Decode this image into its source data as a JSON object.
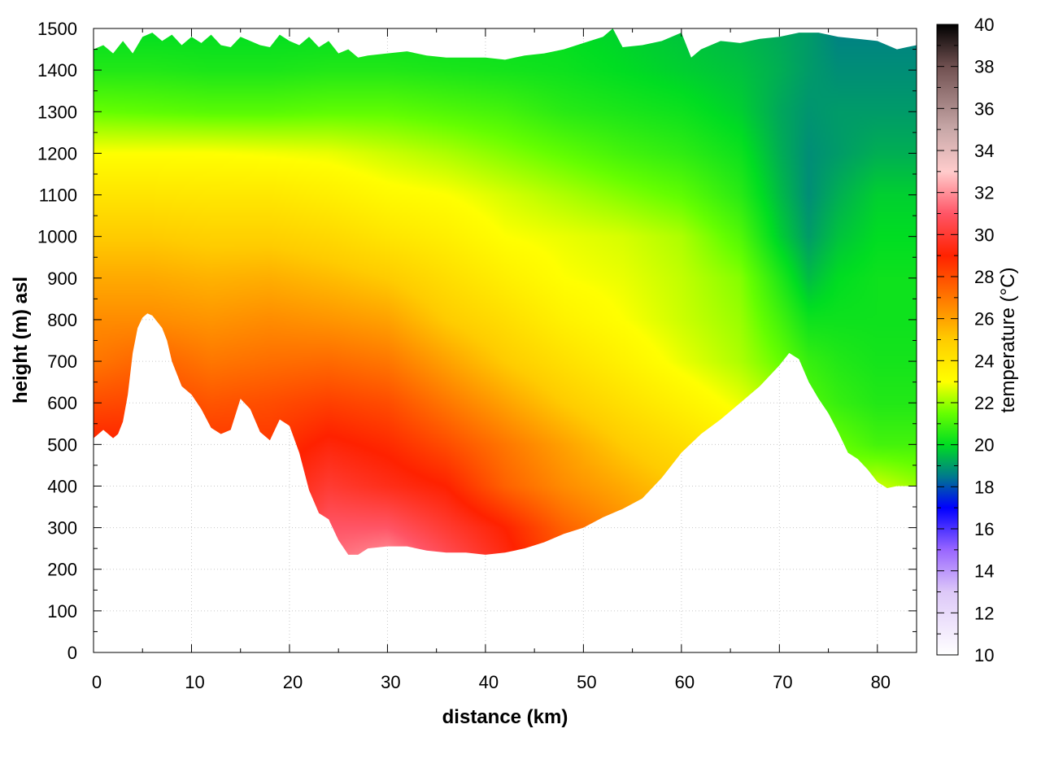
{
  "chart_data": {
    "type": "heatmap",
    "title": "",
    "xlabel": "distance (km)",
    "ylabel": "height (m) asl",
    "colorbar_label": "temperature (°C)",
    "xlim": [
      0,
      84
    ],
    "ylim": [
      0,
      1500
    ],
    "clim": [
      10,
      40
    ],
    "grid": true,
    "x_ticks": [
      0,
      10,
      20,
      30,
      40,
      50,
      60,
      70,
      80
    ],
    "y_ticks": [
      0,
      100,
      200,
      300,
      400,
      500,
      600,
      700,
      800,
      900,
      1000,
      1100,
      1200,
      1300,
      1400,
      1500
    ],
    "colorbar_ticks": [
      10,
      12,
      14,
      16,
      18,
      20,
      22,
      24,
      26,
      28,
      30,
      32,
      34,
      36,
      38,
      40
    ],
    "colormap": [
      {
        "t": 10,
        "color": "#ffffff"
      },
      {
        "t": 13,
        "color": "#ddc8f8"
      },
      {
        "t": 15,
        "color": "#9966ff"
      },
      {
        "t": 17,
        "color": "#0000ff"
      },
      {
        "t": 18.5,
        "color": "#007a8c"
      },
      {
        "t": 20,
        "color": "#00dd22"
      },
      {
        "t": 21.5,
        "color": "#66ff00"
      },
      {
        "t": 23,
        "color": "#ffff00"
      },
      {
        "t": 25,
        "color": "#ffcc00"
      },
      {
        "t": 27,
        "color": "#ff7700"
      },
      {
        "t": 29,
        "color": "#ff2200"
      },
      {
        "t": 31,
        "color": "#ff5566"
      },
      {
        "t": 33,
        "color": "#ffcccc"
      },
      {
        "t": 35,
        "color": "#c8a8a8"
      },
      {
        "t": 38,
        "color": "#705050"
      },
      {
        "t": 40,
        "color": "#000000"
      }
    ],
    "terrain_profile": {
      "distance_km": [
        0,
        1,
        2,
        2.5,
        3,
        3.5,
        4,
        4.5,
        5,
        5.5,
        6,
        6.5,
        7,
        7.5,
        8,
        9,
        10,
        11,
        12,
        13,
        14,
        15,
        16,
        17,
        18,
        19,
        20,
        21,
        22,
        23,
        24,
        25,
        26,
        27,
        28,
        30,
        32,
        34,
        36,
        38,
        40,
        42,
        44,
        46,
        48,
        50,
        52,
        54,
        56,
        58,
        60,
        62,
        64,
        66,
        68,
        70,
        71,
        72,
        73,
        74,
        75,
        76,
        77,
        78,
        79,
        80,
        81,
        82,
        83,
        84
      ],
      "height_m": [
        515,
        535,
        515,
        525,
        555,
        620,
        720,
        780,
        805,
        815,
        810,
        795,
        780,
        750,
        700,
        640,
        620,
        585,
        540,
        525,
        535,
        610,
        585,
        530,
        510,
        560,
        545,
        480,
        390,
        335,
        320,
        270,
        235,
        235,
        250,
        255,
        255,
        245,
        240,
        240,
        235,
        240,
        250,
        265,
        285,
        300,
        325,
        345,
        370,
        420,
        480,
        525,
        560,
        600,
        640,
        690,
        720,
        705,
        650,
        610,
        575,
        530,
        480,
        465,
        440,
        410,
        395,
        400,
        400,
        400
      ]
    },
    "top_boundary": {
      "distance_km": [
        0,
        1,
        2,
        3,
        4,
        5,
        6,
        7,
        8,
        9,
        10,
        11,
        12,
        13,
        14,
        15,
        16,
        17,
        18,
        19,
        20,
        21,
        22,
        23,
        24,
        25,
        26,
        27,
        28,
        30,
        32,
        34,
        36,
        38,
        40,
        42,
        44,
        46,
        48,
        50,
        52,
        53,
        54,
        56,
        58,
        60,
        61,
        62,
        64,
        66,
        68,
        70,
        72,
        74,
        76,
        78,
        80,
        81,
        82,
        83,
        84
      ],
      "height_m": [
        1450,
        1460,
        1440,
        1470,
        1440,
        1480,
        1490,
        1470,
        1485,
        1460,
        1480,
        1465,
        1485,
        1460,
        1455,
        1480,
        1470,
        1460,
        1455,
        1485,
        1470,
        1460,
        1480,
        1455,
        1470,
        1440,
        1450,
        1430,
        1435,
        1440,
        1445,
        1435,
        1430,
        1430,
        1430,
        1425,
        1435,
        1440,
        1450,
        1465,
        1480,
        1500,
        1455,
        1460,
        1470,
        1490,
        1430,
        1450,
        1470,
        1465,
        1475,
        1480,
        1490,
        1490,
        1480,
        1475,
        1470,
        1460,
        1450,
        1455,
        1460
      ]
    },
    "temperature_field": {
      "distance_km": [
        0,
        6,
        12,
        18,
        24,
        30,
        36,
        42,
        48,
        54,
        60,
        66,
        70,
        73,
        76,
        80,
        84
      ],
      "height_m": [
        0,
        200,
        300,
        400,
        500,
        600,
        700,
        800,
        900,
        1000,
        1100,
        1200,
        1300,
        1400,
        1500
      ],
      "values_degC": [
        [
          29.0,
          29.0,
          29.0,
          29.0,
          32.0,
          32.0,
          30.5,
          29.0,
          28.0,
          27.0,
          26.0,
          25.0,
          24.0,
          23.0,
          22.5,
          22.0,
          22.0
        ],
        [
          29.0,
          29.0,
          29.0,
          29.0,
          31.5,
          32.5,
          31.0,
          29.5,
          28.0,
          27.0,
          26.0,
          25.0,
          24.0,
          23.0,
          22.5,
          22.0,
          22.0
        ],
        [
          29.0,
          29.0,
          29.0,
          29.0,
          31.0,
          31.0,
          30.0,
          29.0,
          27.5,
          26.5,
          25.5,
          24.5,
          23.5,
          23.0,
          22.5,
          22.0,
          22.0
        ],
        [
          29.0,
          29.0,
          29.0,
          29.0,
          30.0,
          29.5,
          29.0,
          27.5,
          26.5,
          25.8,
          25.0,
          24.0,
          23.0,
          22.5,
          22.0,
          22.5,
          22.0
        ],
        [
          29.0,
          29.0,
          28.5,
          28.5,
          29.2,
          28.8,
          28.0,
          27.0,
          26.0,
          25.0,
          24.3,
          23.5,
          22.6,
          21.8,
          21.5,
          21.0,
          21.0
        ],
        [
          28.0,
          28.2,
          27.8,
          28.0,
          28.3,
          28.0,
          27.0,
          26.0,
          25.0,
          24.2,
          23.5,
          22.8,
          22.2,
          21.2,
          20.8,
          20.5,
          20.5
        ],
        [
          27.0,
          27.5,
          27.0,
          27.2,
          27.3,
          27.0,
          26.0,
          25.0,
          24.2,
          23.5,
          22.8,
          22.2,
          21.5,
          20.8,
          20.5,
          20.3,
          20.3
        ],
        [
          26.5,
          26.5,
          26.3,
          26.5,
          26.3,
          26.0,
          25.0,
          24.3,
          23.5,
          23.0,
          22.5,
          22.0,
          21.0,
          20.2,
          20.2,
          20.2,
          20.2
        ],
        [
          25.8,
          25.8,
          25.6,
          25.7,
          25.4,
          25.0,
          24.3,
          23.6,
          23.0,
          22.8,
          22.4,
          21.8,
          20.5,
          19.5,
          20.0,
          20.2,
          20.2
        ],
        [
          25.0,
          25.0,
          24.8,
          24.8,
          24.5,
          24.0,
          23.6,
          23.0,
          22.8,
          22.6,
          22.2,
          21.2,
          19.8,
          19.0,
          19.6,
          20.0,
          20.0
        ],
        [
          24.0,
          24.0,
          23.9,
          23.9,
          23.6,
          23.2,
          23.0,
          22.6,
          22.2,
          21.8,
          21.4,
          20.6,
          19.5,
          18.8,
          19.3,
          19.8,
          19.8
        ],
        [
          23.0,
          23.0,
          23.0,
          22.9,
          22.8,
          22.5,
          22.2,
          21.8,
          21.4,
          21.0,
          20.7,
          20.2,
          19.3,
          18.8,
          19.0,
          19.3,
          19.3
        ],
        [
          21.5,
          21.4,
          21.3,
          21.3,
          21.4,
          21.4,
          21.2,
          21.0,
          20.6,
          20.4,
          20.2,
          19.8,
          19.2,
          18.9,
          19.0,
          19.0,
          19.0
        ],
        [
          20.5,
          20.5,
          20.4,
          20.4,
          20.5,
          20.5,
          20.4,
          20.3,
          20.2,
          20.0,
          19.8,
          19.6,
          19.3,
          19.0,
          18.8,
          18.8,
          18.8
        ],
        [
          20.0,
          20.0,
          20.0,
          20.0,
          20.0,
          20.0,
          20.0,
          20.0,
          20.0,
          19.8,
          19.6,
          19.4,
          19.2,
          19.0,
          18.6,
          18.6,
          18.6
        ]
      ]
    }
  }
}
